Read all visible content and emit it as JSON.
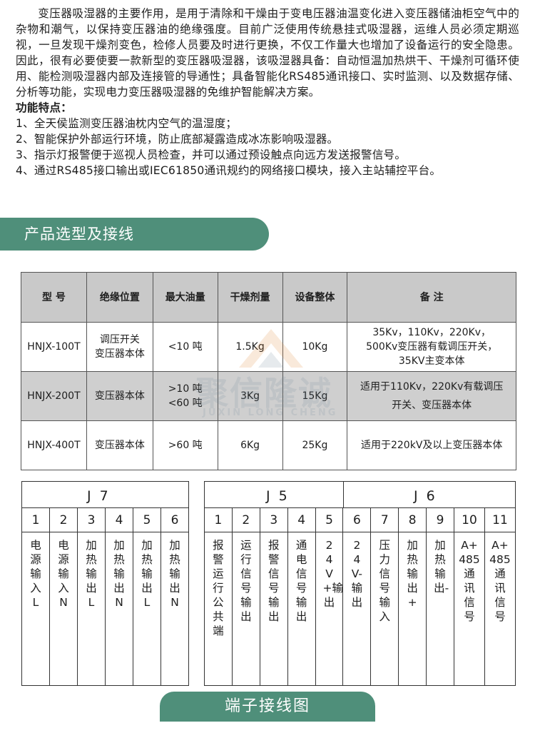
{
  "intro": {
    "paragraph": "变压器吸湿器的主要作用，是用于清除和干燥由于变电压器油温变化进入变压器储油柜空气中的杂物和潮气，以保持变压器油的绝缘强度。目前广泛使用传统悬挂式吸湿器，运维人员必须定期巡视，一旦发现干燥剂变色，检修人员要及时进行更换，不仅工作量大也增加了设备运行的安全隐患。因此，很有必要使要一款新型的变压器吸湿器，该吸湿器具备：自动恒温加热烘干、干燥剂可循环使用、能检测吸湿器内部及连接管的导通性；具备智能化RS485通讯接口、实时监测、以及数据存储、分析等功能，实现电力变压器吸湿器的免维护智能解决方案。",
    "features_title": "功能特点：",
    "features": [
      "1、全天侯监测变压器油枕内空气的温湿度；",
      "2、智能保护外部运行环境，防止底部凝露造成冰冻影响吸湿器。",
      "3、指示灯报警便于巡视人员检查，并可以通过预设触点向远方发送报警信号。",
      "4、通过RS485接口输出或IEC61850通讯规约的网络接口模块，接入主站辅控平台。"
    ]
  },
  "section_title": "产品选型及接线",
  "spec_table": {
    "headers": [
      "型 号",
      "绝缘位置",
      "最大油量",
      "干燥剂量",
      "设备整体",
      "备 注"
    ],
    "rows": [
      {
        "model": "HNJX-100T",
        "position_1": "调压开关",
        "position_2": "变压器本体",
        "oil_1": "<10 吨",
        "oil_2": "",
        "dry": "1.5Kg",
        "device": "10Kg",
        "note_1": "35Kv，110Kv，220Kv，",
        "note_2": "500Kv变压器有载调压开关，",
        "note_3": "35KV主变本体"
      },
      {
        "model": "HNJX-200T",
        "position_1": "变压器本体",
        "position_2": "",
        "oil_1": ">10 吨",
        "oil_2": "<60 吨",
        "dry": "3Kg",
        "device": "15Kg",
        "note_1": "适用于110Kv，220Kv有载调压",
        "note_2": "开关、变压器本体",
        "note_3": ""
      },
      {
        "model": "HNJX-400T",
        "position_1": "变压器本体",
        "position_2": "",
        "oil_1": ">60 吨",
        "oil_2": "",
        "dry": "6Kg",
        "device": "25Kg",
        "note_1": "适用于220kV及以上变压器本体",
        "note_2": "",
        "note_3": ""
      }
    ]
  },
  "watermark": {
    "text": "聚信隆诚",
    "subtext": "JUXIN LONG CHENG"
  },
  "j7": {
    "label": "J 7",
    "terminals": [
      {
        "num": "1",
        "label": "电源输入L"
      },
      {
        "num": "2",
        "label": "电源输入N"
      },
      {
        "num": "3",
        "label": "加热输出L"
      },
      {
        "num": "4",
        "label": "加热输出N"
      },
      {
        "num": "5",
        "label": "加热输出L"
      },
      {
        "num": "6",
        "label": "加热输出N"
      }
    ]
  },
  "j5": {
    "label": "J 5",
    "terminals": [
      {
        "num": "1",
        "label": "报警运行公共端"
      },
      {
        "num": "2",
        "label": "运行信号输出"
      },
      {
        "num": "3",
        "label": "报警信号输出"
      },
      {
        "num": "4",
        "label": "通电信号输出"
      },
      {
        "num": "5",
        "label": "24V+输出"
      }
    ]
  },
  "j6": {
    "label": "J 6",
    "terminals": [
      {
        "num": "6",
        "label": "24V-输出"
      },
      {
        "num": "7",
        "label": "压力信号输入"
      },
      {
        "num": "8",
        "label": "加热输出+"
      },
      {
        "num": "9",
        "label": "加热输出-"
      },
      {
        "num": "10",
        "label_top": "A+",
        "label_mid": "485",
        "label": "通讯信号"
      },
      {
        "num": "11",
        "label_top": "A+",
        "label_mid": "485",
        "label": "通讯信号"
      }
    ]
  },
  "bottom_title": "端子接线图",
  "colors": {
    "accent": "#4f8f7a",
    "header_gray": "#c9c9c9",
    "row_gray": "#cfcfcf"
  }
}
